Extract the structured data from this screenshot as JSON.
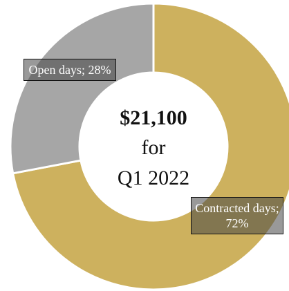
{
  "chart_data": {
    "type": "donut",
    "categories": [
      "Contracted days",
      "Open days"
    ],
    "values": [
      72,
      28
    ],
    "value_labels": [
      "Contracted days; 72%",
      "Open days; 28%"
    ],
    "colors": [
      "#cdb15e",
      "#a6a6a6"
    ],
    "annotations": [
      "$21,100",
      "for",
      "Q1 2022"
    ]
  }
}
